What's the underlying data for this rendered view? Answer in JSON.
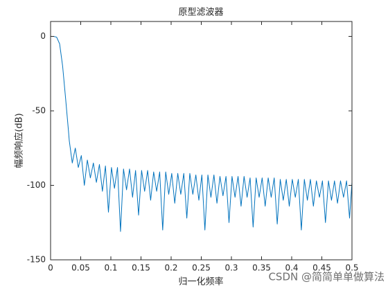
{
  "chart_data": {
    "type": "line",
    "title": "原型滤波器",
    "x_label": "归一化频率",
    "y_label": "幅频响应(dB)",
    "watermark": "CSDN @简简单单做算法",
    "xlim": [
      0,
      0.5
    ],
    "ylim": [
      -150,
      10
    ],
    "xticks": [
      0,
      0.05,
      0.1,
      0.15,
      0.2,
      0.25,
      0.3,
      0.35,
      0.4,
      0.45,
      0.5
    ],
    "yticks": [
      0,
      -50,
      -100,
      -150
    ],
    "color": "#0072bd",
    "x": [
      0,
      0.005,
      0.01,
      0.015,
      0.02,
      0.025,
      0.03,
      0.031,
      0.036,
      0.041,
      0.046,
      0.051,
      0.056,
      0.061,
      0.066,
      0.071,
      0.076,
      0.081,
      0.086,
      0.091,
      0.096,
      0.101,
      0.106,
      0.111,
      0.116,
      0.121,
      0.126,
      0.131,
      0.136,
      0.141,
      0.146,
      0.151,
      0.156,
      0.161,
      0.166,
      0.171,
      0.176,
      0.181,
      0.186,
      0.191,
      0.196,
      0.201,
      0.206,
      0.211,
      0.216,
      0.221,
      0.226,
      0.231,
      0.236,
      0.241,
      0.246,
      0.251,
      0.256,
      0.261,
      0.266,
      0.271,
      0.276,
      0.281,
      0.286,
      0.291,
      0.296,
      0.301,
      0.306,
      0.311,
      0.316,
      0.321,
      0.326,
      0.331,
      0.336,
      0.341,
      0.346,
      0.351,
      0.356,
      0.361,
      0.366,
      0.371,
      0.376,
      0.381,
      0.386,
      0.391,
      0.396,
      0.401,
      0.406,
      0.411,
      0.416,
      0.421,
      0.426,
      0.431,
      0.436,
      0.441,
      0.446,
      0.451,
      0.456,
      0.461,
      0.466,
      0.471,
      0.476,
      0.481,
      0.486,
      0.491,
      0.496,
      0.5
    ],
    "values": [
      0,
      0,
      -0.5,
      -5,
      -20,
      -42,
      -65,
      -70,
      -85,
      -75,
      -88,
      -80,
      -100,
      -83,
      -95,
      -85,
      -98,
      -86,
      -104,
      -87,
      -118,
      -88,
      -102,
      -88,
      -131,
      -89,
      -103,
      -89,
      -108,
      -90,
      -120,
      -90,
      -104,
      -90,
      -110,
      -91,
      -104,
      -91,
      -130,
      -91,
      -106,
      -92,
      -112,
      -92,
      -106,
      -92,
      -122,
      -92,
      -106,
      -93,
      -110,
      -93,
      -130,
      -93,
      -108,
      -93,
      -112,
      -94,
      -107,
      -94,
      -125,
      -94,
      -108,
      -94,
      -114,
      -94,
      -108,
      -95,
      -128,
      -95,
      -108,
      -95,
      -114,
      -95,
      -108,
      -95,
      -126,
      -96,
      -110,
      -96,
      -114,
      -96,
      -108,
      -96,
      -130,
      -96,
      -110,
      -96,
      -114,
      -97,
      -108,
      -97,
      -125,
      -97,
      -110,
      -97,
      -112,
      -97,
      -108,
      -97,
      -122,
      -98
    ]
  }
}
